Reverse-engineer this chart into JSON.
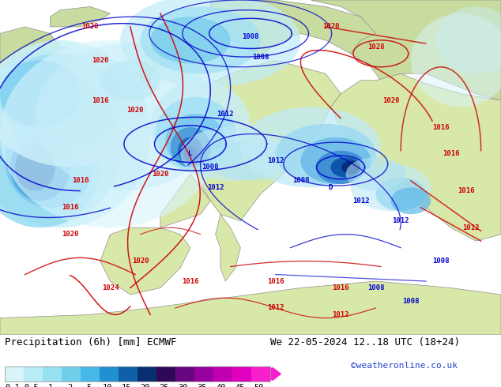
{
  "title_left": "Precipitation (6h) [mm] ECMWF",
  "title_right": "We 22-05-2024 12..18 UTC (18+24)",
  "credit": "©weatheronline.co.uk",
  "colorbar_labels": [
    "0.1",
    "0.5",
    "1",
    "2",
    "5",
    "10",
    "15",
    "20",
    "25",
    "30",
    "35",
    "40",
    "45",
    "50"
  ],
  "colorbar_colors": [
    "#d8f4f8",
    "#b8ecf5",
    "#96e0f0",
    "#70d0ec",
    "#48b8e8",
    "#2090d0",
    "#1060a8",
    "#083070",
    "#300858",
    "#680880",
    "#9800a0",
    "#c000b0",
    "#e000c0",
    "#f820cc"
  ],
  "ocean_color": "#e8e8e8",
  "land_north_color": "#c8dca0",
  "land_south_color": "#d8e8a8",
  "coast_color": "#909090",
  "text_color": "#000000",
  "red_isobar_color": "#cc0000",
  "blue_isobar_color": "#0000cc",
  "colorbar_label_fontsize": 7.5,
  "title_fontsize": 9,
  "credit_color": "#2244cc",
  "credit_fontsize": 8
}
